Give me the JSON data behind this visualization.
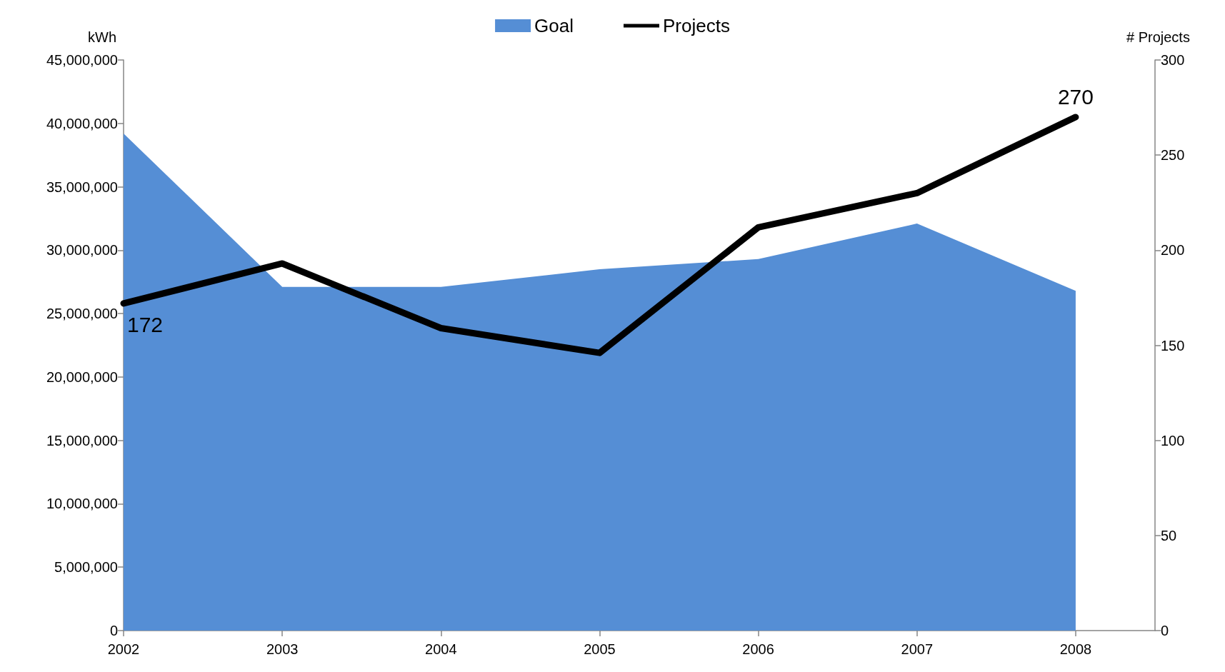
{
  "chart_data": {
    "type": "area",
    "xlabel": null,
    "ylabel": "kWh",
    "y2label": "# Projects",
    "x": [
      2002,
      2003,
      2004,
      2005,
      2006,
      2007,
      2008
    ],
    "xlim": [
      2002,
      2008.5
    ],
    "xticks": [
      2002,
      2003,
      2004,
      2005,
      2006,
      2007,
      2008
    ],
    "ylim": [
      0,
      45000000
    ],
    "yticks": [
      {
        "value": 0,
        "label": "0"
      },
      {
        "value": 5000000,
        "label": "5,000,000"
      },
      {
        "value": 10000000,
        "label": "10,000,000"
      },
      {
        "value": 15000000,
        "label": "15,000,000"
      },
      {
        "value": 20000000,
        "label": "20,000,000"
      },
      {
        "value": 25000000,
        "label": "25,000,000"
      },
      {
        "value": 30000000,
        "label": "30,000,000"
      },
      {
        "value": 35000000,
        "label": "35,000,000"
      },
      {
        "value": 40000000,
        "label": "40,000,000"
      },
      {
        "value": 45000000,
        "label": "45,000,000"
      }
    ],
    "y2lim": [
      0,
      300
    ],
    "y2ticks": [
      0,
      50,
      100,
      150,
      200,
      250,
      300
    ],
    "series": [
      {
        "name": "Goal",
        "color": "#558ed5",
        "values": [
          39200000,
          27100000,
          27100000,
          28500000,
          29300000,
          32100000,
          26800000
        ]
      },
      {
        "name": "Projects",
        "type": "line",
        "axis": "y2",
        "color": "#000000",
        "values": [
          172,
          193,
          159,
          146,
          212,
          230,
          270
        ],
        "value_labels": [
          "172",
          null,
          null,
          null,
          null,
          null,
          "270"
        ]
      }
    ],
    "grid": false,
    "legend": "top",
    "marker": "none",
    "line_style": "solid"
  }
}
